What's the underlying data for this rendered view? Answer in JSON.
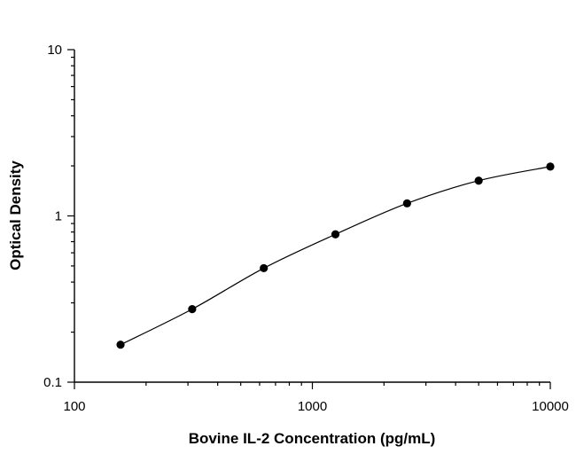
{
  "chart_data": {
    "type": "scatter",
    "title": "",
    "xlabel": "Bovine IL-2 Concentration (pg/mL)",
    "ylabel": "Optical Density",
    "x_scale": "log",
    "y_scale": "log",
    "xlim": [
      100,
      10000
    ],
    "ylim": [
      0.1,
      10
    ],
    "x_ticks": [
      "100",
      "1000",
      "10000"
    ],
    "y_ticks": [
      "0.1",
      "1",
      "10"
    ],
    "grid": false,
    "series": [
      {
        "x": [
          156.25,
          312.5,
          625,
          1250,
          2500,
          5000,
          10000
        ],
        "y": [
          0.168,
          0.275,
          0.485,
          0.775,
          1.19,
          1.63,
          1.98
        ]
      }
    ],
    "fit_curve": true
  }
}
